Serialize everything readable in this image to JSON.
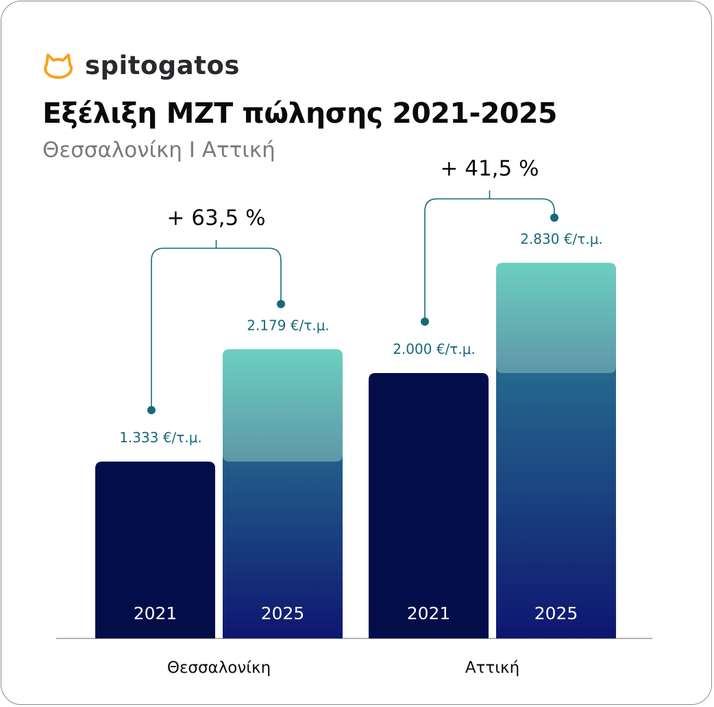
{
  "brand": {
    "name": "spitogatos",
    "logo_icon": "cat-head-icon",
    "logo_color": "#f7a21b"
  },
  "title": "Εξέλιξη ΜΖΤ πώλησης 2021-2025",
  "subtitle": "Θεσσαλονίκη Ι Αττική",
  "colors": {
    "bar_2021": "#020d4a",
    "bar_2025_top": "#6ccfc1",
    "bar_2025_bottom": "#0e1670",
    "accent": "#16697a",
    "baseline": "#9a9a9a"
  },
  "chart_data": {
    "type": "bar",
    "title": "Εξέλιξη ΜΖΤ πώλησης 2021-2025",
    "unit": "€/τ.μ.",
    "categories": [
      "Θεσσαλονίκη",
      "Αττική"
    ],
    "series": [
      {
        "name": "2021",
        "values": [
          1333,
          2000
        ],
        "labels": [
          "1.333 €/τ.μ.",
          "2.000 €/τ.μ."
        ]
      },
      {
        "name": "2025",
        "values": [
          2179,
          2830
        ],
        "labels": [
          "2.179 €/τ.μ.",
          "2.830 €/τ.μ."
        ]
      }
    ],
    "changes": [
      "+ 63,5 %",
      "+ 41,5 %"
    ],
    "ylim": [
      0,
      2830
    ],
    "grid": false,
    "legend": "none"
  }
}
